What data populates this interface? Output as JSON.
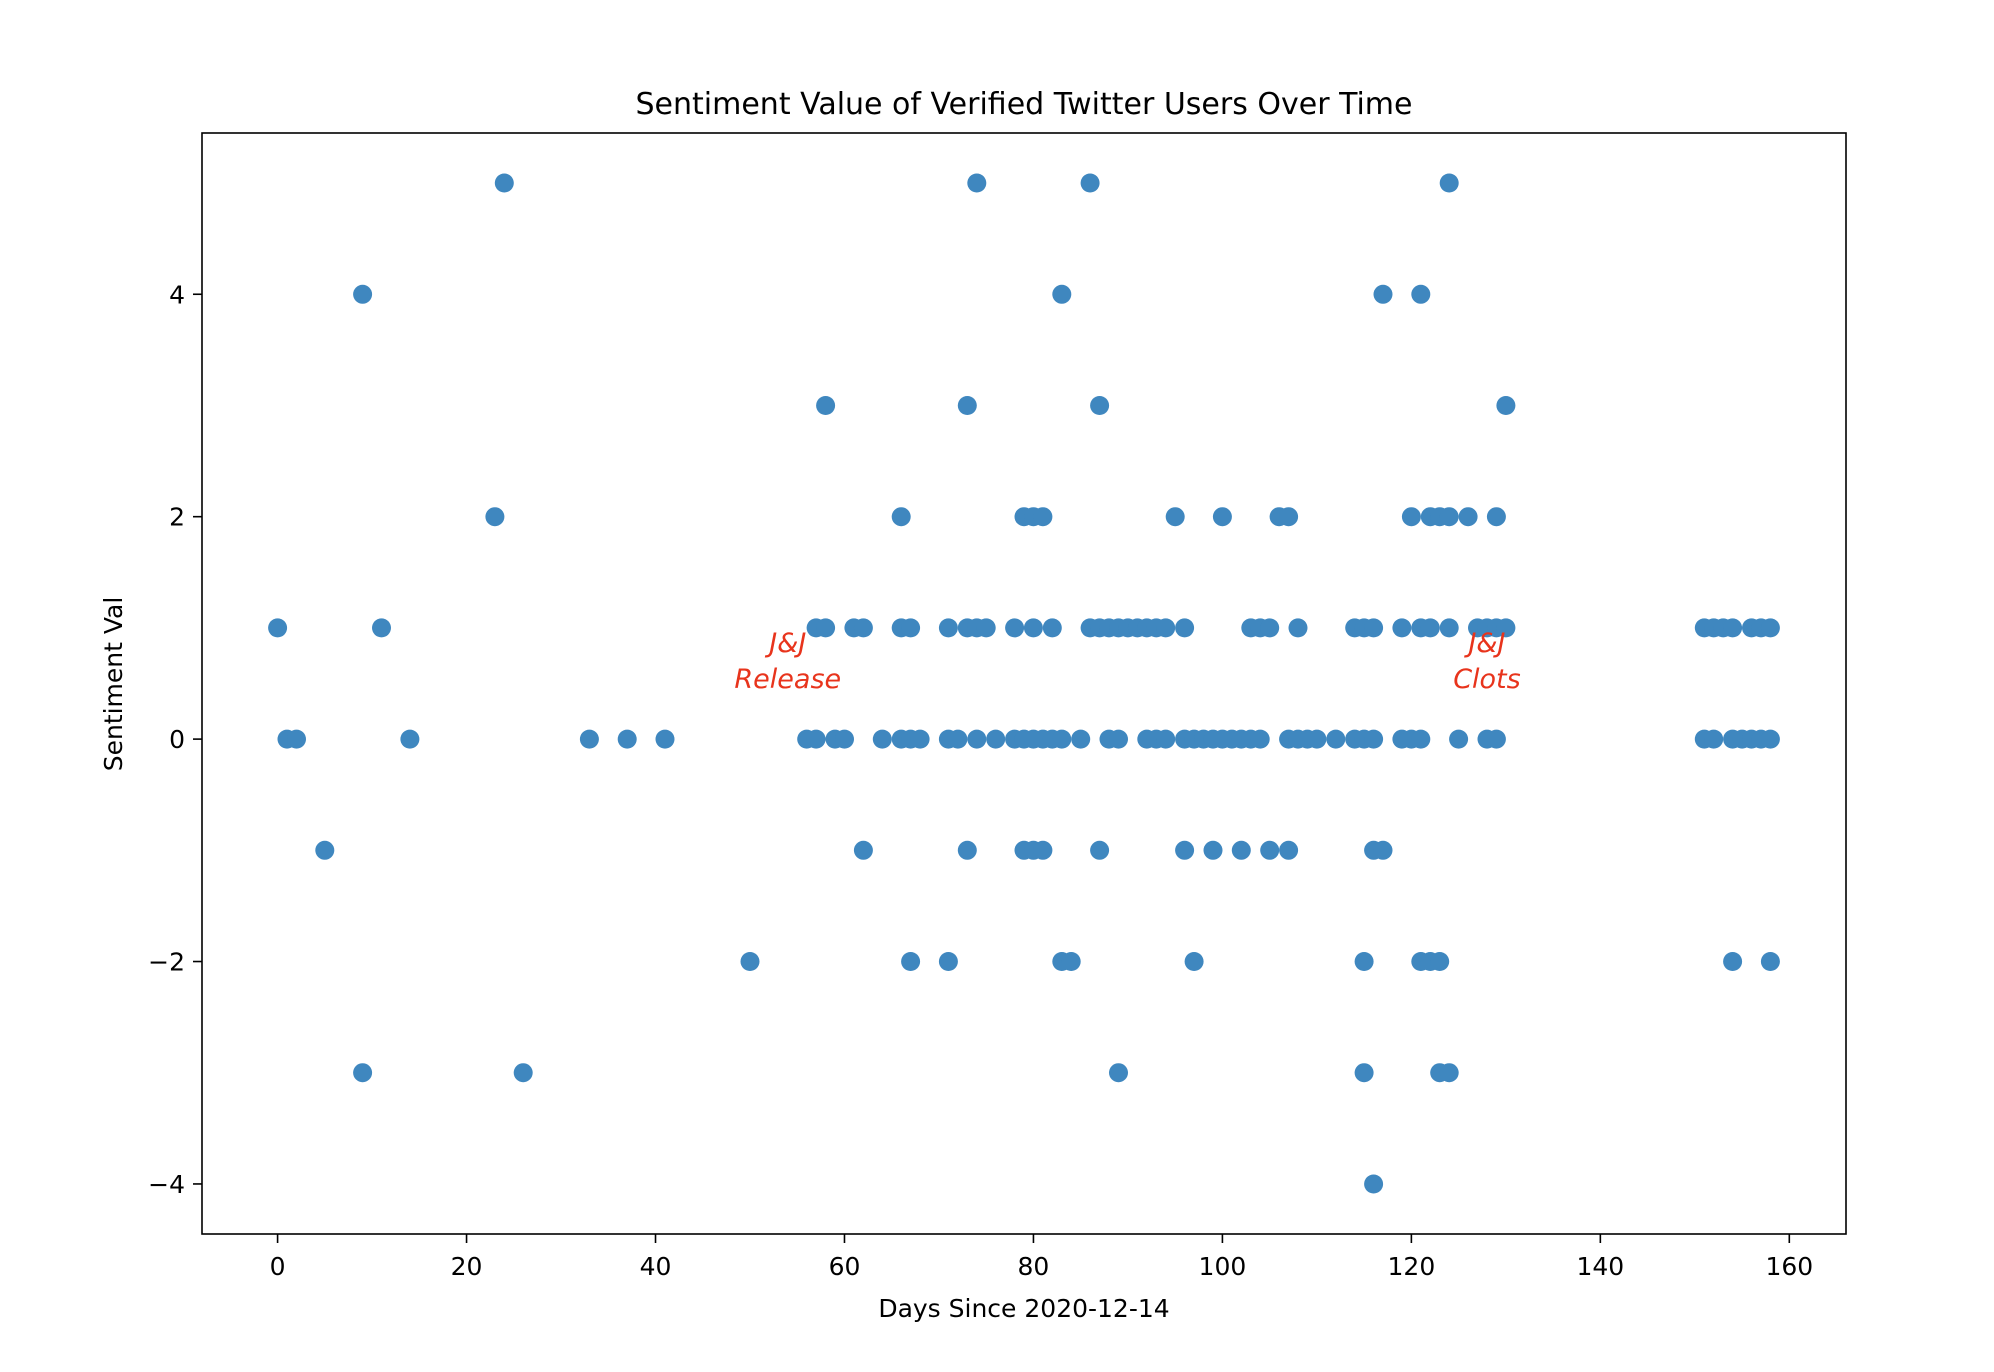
{
  "chart_data": {
    "type": "scatter",
    "title": "Sentiment Value of Verified Twitter Users Over Time",
    "xlabel": "Days Since 2020-12-14",
    "ylabel": "Sentiment Val",
    "xlim": [
      -8,
      166
    ],
    "ylim": [
      -4.45,
      5.45
    ],
    "xticks": [
      0,
      20,
      40,
      60,
      80,
      100,
      120,
      140,
      160
    ],
    "yticks": [
      -4,
      -2,
      0,
      2,
      4
    ],
    "ytick_labels": [
      "−4",
      "−2",
      "0",
      "2",
      "4"
    ],
    "grid": false,
    "legend": "none",
    "marker_color": "#3f87bf",
    "annotation_color": "#e8341c",
    "annotations": [
      {
        "lines": [
          "J&J",
          "Release"
        ],
        "x": 54,
        "y": 0.55
      },
      {
        "lines": [
          "J&J",
          "Clots"
        ],
        "x": 128,
        "y": 0.55
      }
    ],
    "points": [
      [
        0,
        1
      ],
      [
        1,
        0
      ],
      [
        2,
        0
      ],
      [
        5,
        -1
      ],
      [
        9,
        4
      ],
      [
        9,
        -3
      ],
      [
        11,
        1
      ],
      [
        14,
        0
      ],
      [
        23,
        2
      ],
      [
        24,
        5
      ],
      [
        26,
        -3
      ],
      [
        33,
        0
      ],
      [
        37,
        0
      ],
      [
        41,
        0
      ],
      [
        50,
        -2
      ],
      [
        56,
        0
      ],
      [
        57,
        0
      ],
      [
        57,
        1
      ],
      [
        58,
        1
      ],
      [
        58,
        3
      ],
      [
        59,
        0
      ],
      [
        60,
        0
      ],
      [
        61,
        1
      ],
      [
        62,
        1
      ],
      [
        62,
        -1
      ],
      [
        64,
        0
      ],
      [
        66,
        2
      ],
      [
        66,
        1
      ],
      [
        66,
        0
      ],
      [
        67,
        1
      ],
      [
        67,
        0
      ],
      [
        67,
        -2
      ],
      [
        68,
        0
      ],
      [
        71,
        1
      ],
      [
        71,
        0
      ],
      [
        71,
        -2
      ],
      [
        72,
        0
      ],
      [
        73,
        3
      ],
      [
        73,
        1
      ],
      [
        73,
        -1
      ],
      [
        74,
        5
      ],
      [
        74,
        1
      ],
      [
        74,
        0
      ],
      [
        75,
        1
      ],
      [
        76,
        0
      ],
      [
        78,
        1
      ],
      [
        78,
        0
      ],
      [
        79,
        2
      ],
      [
        79,
        0
      ],
      [
        79,
        -1
      ],
      [
        80,
        2
      ],
      [
        80,
        1
      ],
      [
        80,
        0
      ],
      [
        80,
        -1
      ],
      [
        81,
        2
      ],
      [
        81,
        0
      ],
      [
        81,
        -1
      ],
      [
        82,
        1
      ],
      [
        82,
        0
      ],
      [
        83,
        4
      ],
      [
        83,
        0
      ],
      [
        83,
        -2
      ],
      [
        84,
        -2
      ],
      [
        85,
        0
      ],
      [
        86,
        5
      ],
      [
        86,
        1
      ],
      [
        87,
        3
      ],
      [
        87,
        1
      ],
      [
        87,
        -1
      ],
      [
        88,
        1
      ],
      [
        88,
        0
      ],
      [
        89,
        1
      ],
      [
        89,
        0
      ],
      [
        89,
        -3
      ],
      [
        90,
        1
      ],
      [
        91,
        1
      ],
      [
        92,
        1
      ],
      [
        92,
        0
      ],
      [
        93,
        1
      ],
      [
        93,
        0
      ],
      [
        94,
        1
      ],
      [
        94,
        0
      ],
      [
        95,
        2
      ],
      [
        96,
        1
      ],
      [
        96,
        0
      ],
      [
        96,
        -1
      ],
      [
        97,
        0
      ],
      [
        97,
        -2
      ],
      [
        98,
        0
      ],
      [
        99,
        0
      ],
      [
        99,
        -1
      ],
      [
        100,
        2
      ],
      [
        100,
        0
      ],
      [
        101,
        0
      ],
      [
        102,
        0
      ],
      [
        102,
        -1
      ],
      [
        103,
        1
      ],
      [
        103,
        0
      ],
      [
        104,
        1
      ],
      [
        104,
        0
      ],
      [
        105,
        1
      ],
      [
        105,
        -1
      ],
      [
        106,
        2
      ],
      [
        107,
        2
      ],
      [
        107,
        0
      ],
      [
        107,
        -1
      ],
      [
        108,
        1
      ],
      [
        108,
        0
      ],
      [
        109,
        0
      ],
      [
        110,
        0
      ],
      [
        112,
        0
      ],
      [
        114,
        1
      ],
      [
        114,
        0
      ],
      [
        115,
        1
      ],
      [
        115,
        0
      ],
      [
        115,
        -2
      ],
      [
        115,
        -3
      ],
      [
        116,
        1
      ],
      [
        116,
        0
      ],
      [
        116,
        -1
      ],
      [
        116,
        -4
      ],
      [
        117,
        4
      ],
      [
        117,
        -1
      ],
      [
        119,
        1
      ],
      [
        119,
        0
      ],
      [
        120,
        2
      ],
      [
        120,
        0
      ],
      [
        121,
        4
      ],
      [
        121,
        1
      ],
      [
        121,
        0
      ],
      [
        121,
        -2
      ],
      [
        122,
        2
      ],
      [
        122,
        1
      ],
      [
        122,
        -2
      ],
      [
        123,
        2
      ],
      [
        123,
        -2
      ],
      [
        123,
        -3
      ],
      [
        124,
        5
      ],
      [
        124,
        2
      ],
      [
        124,
        1
      ],
      [
        124,
        -3
      ],
      [
        125,
        0
      ],
      [
        126,
        2
      ],
      [
        127,
        1
      ],
      [
        128,
        1
      ],
      [
        128,
        0
      ],
      [
        129,
        2
      ],
      [
        129,
        1
      ],
      [
        129,
        0
      ],
      [
        130,
        3
      ],
      [
        130,
        1
      ],
      [
        151,
        1
      ],
      [
        151,
        0
      ],
      [
        152,
        1
      ],
      [
        152,
        0
      ],
      [
        153,
        1
      ],
      [
        154,
        1
      ],
      [
        154,
        0
      ],
      [
        154,
        -2
      ],
      [
        155,
        0
      ],
      [
        156,
        1
      ],
      [
        156,
        0
      ],
      [
        157,
        1
      ],
      [
        157,
        0
      ],
      [
        158,
        1
      ],
      [
        158,
        0
      ],
      [
        158,
        -2
      ]
    ]
  }
}
